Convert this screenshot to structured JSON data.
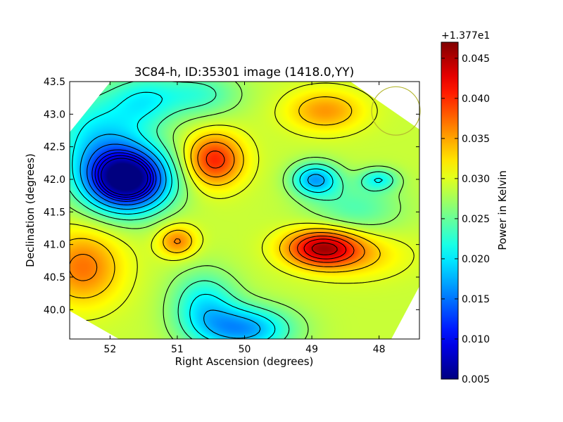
{
  "chart_data": {
    "type": "heatmap",
    "title": "3C84-h, ID:35301 image (1418.0,YY)",
    "xlabel": "Right Ascension (degrees)",
    "ylabel": "Declination (degrees)",
    "xlim": [
      52.6,
      47.4
    ],
    "ylim": [
      39.55,
      43.5
    ],
    "x_ticks": [
      {
        "value": 52,
        "label": "52"
      },
      {
        "value": 51,
        "label": "51"
      },
      {
        "value": 50,
        "label": "50"
      },
      {
        "value": 49,
        "label": "49"
      },
      {
        "value": 48,
        "label": "48"
      }
    ],
    "y_ticks": [
      {
        "value": 40.0,
        "label": "40.0"
      },
      {
        "value": 40.5,
        "label": "40.5"
      },
      {
        "value": 41.0,
        "label": "41.0"
      },
      {
        "value": 41.5,
        "label": "41.5"
      },
      {
        "value": 42.0,
        "label": "42.0"
      },
      {
        "value": 42.5,
        "label": "42.5"
      },
      {
        "value": 43.0,
        "label": "43.0"
      },
      {
        "value": 43.5,
        "label": "43.5"
      }
    ],
    "colorbar": {
      "label": "Power in Kelvin",
      "offset_label": "+1.377e1",
      "range": [
        0.005,
        0.047
      ],
      "ticks": [
        {
          "value": 0.005,
          "label": "0.005"
        },
        {
          "value": 0.01,
          "label": "0.010"
        },
        {
          "value": 0.015,
          "label": "0.015"
        },
        {
          "value": 0.02,
          "label": "0.020"
        },
        {
          "value": 0.025,
          "label": "0.025"
        },
        {
          "value": 0.03,
          "label": "0.030"
        },
        {
          "value": 0.035,
          "label": "0.035"
        },
        {
          "value": 0.04,
          "label": "0.040"
        },
        {
          "value": 0.045,
          "label": "0.045"
        }
      ],
      "colormap": "jet"
    },
    "field": {
      "base": 0.029,
      "features": [
        {
          "ra": 51.75,
          "dec": 42.0,
          "amp": -0.0255,
          "sigma_ra": 0.45,
          "sigma_dec": 0.35
        },
        {
          "ra": 52.2,
          "dec": 42.7,
          "amp": -0.008,
          "sigma_ra": 0.5,
          "sigma_dec": 0.5
        },
        {
          "ra": 50.45,
          "dec": 42.3,
          "amp": 0.0115,
          "sigma_ra": 0.3,
          "sigma_dec": 0.28
        },
        {
          "ra": 48.85,
          "dec": 40.95,
          "amp": 0.015,
          "sigma_ra": 0.38,
          "sigma_dec": 0.2
        },
        {
          "ra": 48.3,
          "dec": 40.85,
          "amp": 0.004,
          "sigma_ra": 0.5,
          "sigma_dec": 0.25
        },
        {
          "ra": 48.95,
          "dec": 42.0,
          "amp": -0.0115,
          "sigma_ra": 0.25,
          "sigma_dec": 0.18
        },
        {
          "ra": 48.0,
          "dec": 42.0,
          "amp": -0.007,
          "sigma_ra": 0.2,
          "sigma_dec": 0.12
        },
        {
          "ra": 48.8,
          "dec": 43.05,
          "amp": 0.0065,
          "sigma_ra": 0.4,
          "sigma_dec": 0.22
        },
        {
          "ra": 51.0,
          "dec": 41.05,
          "amp": 0.0075,
          "sigma_ra": 0.2,
          "sigma_dec": 0.17
        },
        {
          "ra": 52.4,
          "dec": 40.65,
          "amp": 0.008,
          "sigma_ra": 0.4,
          "sigma_dec": 0.4
        },
        {
          "ra": 50.0,
          "dec": 39.7,
          "amp": -0.012,
          "sigma_ra": 0.5,
          "sigma_dec": 0.25
        },
        {
          "ra": 50.6,
          "dec": 40.1,
          "amp": -0.008,
          "sigma_ra": 0.35,
          "sigma_dec": 0.35
        },
        {
          "ra": 50.7,
          "dec": 43.3,
          "amp": -0.006,
          "sigma_ra": 0.45,
          "sigma_dec": 0.25
        },
        {
          "ra": 51.5,
          "dec": 43.2,
          "amp": -0.006,
          "sigma_ra": 0.35,
          "sigma_dec": 0.3
        },
        {
          "ra": 48.35,
          "dec": 41.55,
          "amp": -0.005,
          "sigma_ra": 0.5,
          "sigma_dec": 0.3
        }
      ],
      "contour_levels": [
        0.008,
        0.0095,
        0.011,
        0.0125,
        0.015,
        0.018,
        0.021,
        0.024,
        0.027,
        0.03,
        0.033,
        0.036,
        0.039,
        0.0415,
        0.044
      ]
    },
    "beam": {
      "ra": 47.75,
      "dec": 43.05,
      "radius": 0.36,
      "color": "#b5b832"
    },
    "background": "#ffffff"
  }
}
